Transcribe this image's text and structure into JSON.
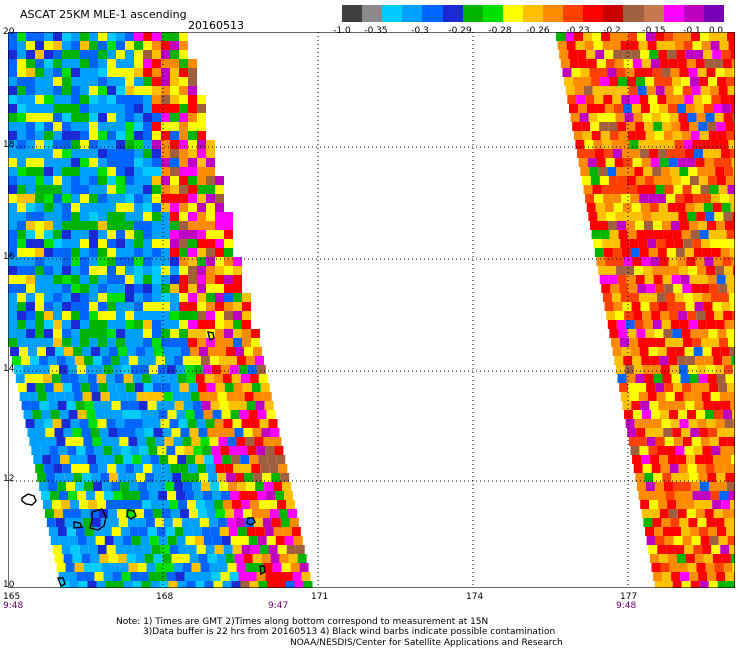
{
  "header": {
    "title": "ASCAT 25KM MLE-1 ascending",
    "date": "20160513"
  },
  "colorbar": {
    "colors": [
      "#404040",
      "#8a8a8a",
      "#00ccff",
      "#00a0ff",
      "#0064ff",
      "#1a2bd6",
      "#00b400",
      "#00e000",
      "#ffff00",
      "#ffc000",
      "#ff8c00",
      "#ff4000",
      "#ff0000",
      "#c80000",
      "#a06040",
      "#c87850",
      "#ff00ff",
      "#c000c0",
      "#7800b4"
    ],
    "labels": [
      "-1.0",
      "-0.35",
      "-0.3",
      "-0.29",
      "-0.28",
      "-0.26",
      "-0.23",
      "-0.2",
      "-0.15",
      "-0.1",
      "0.0"
    ]
  },
  "map": {
    "lat_labels": [
      "20",
      "18",
      "16",
      "14",
      "12",
      "10"
    ],
    "lon_labels": [
      "165",
      "168",
      "171",
      "174",
      "177"
    ],
    "time_labels": [
      "9:48",
      "9:47",
      "9:48"
    ]
  },
  "footer": {
    "note_line1": "Note: 1) Times are GMT 2)Times along bottom correspond to measurement at 15N",
    "note_line2": "3)Data buffer is 22 hrs from 20160513 4) Black wind barbs indicate possible contamination",
    "note_line3": "NOAA/NESDIS/Center for Satellite Applications and Research"
  }
}
